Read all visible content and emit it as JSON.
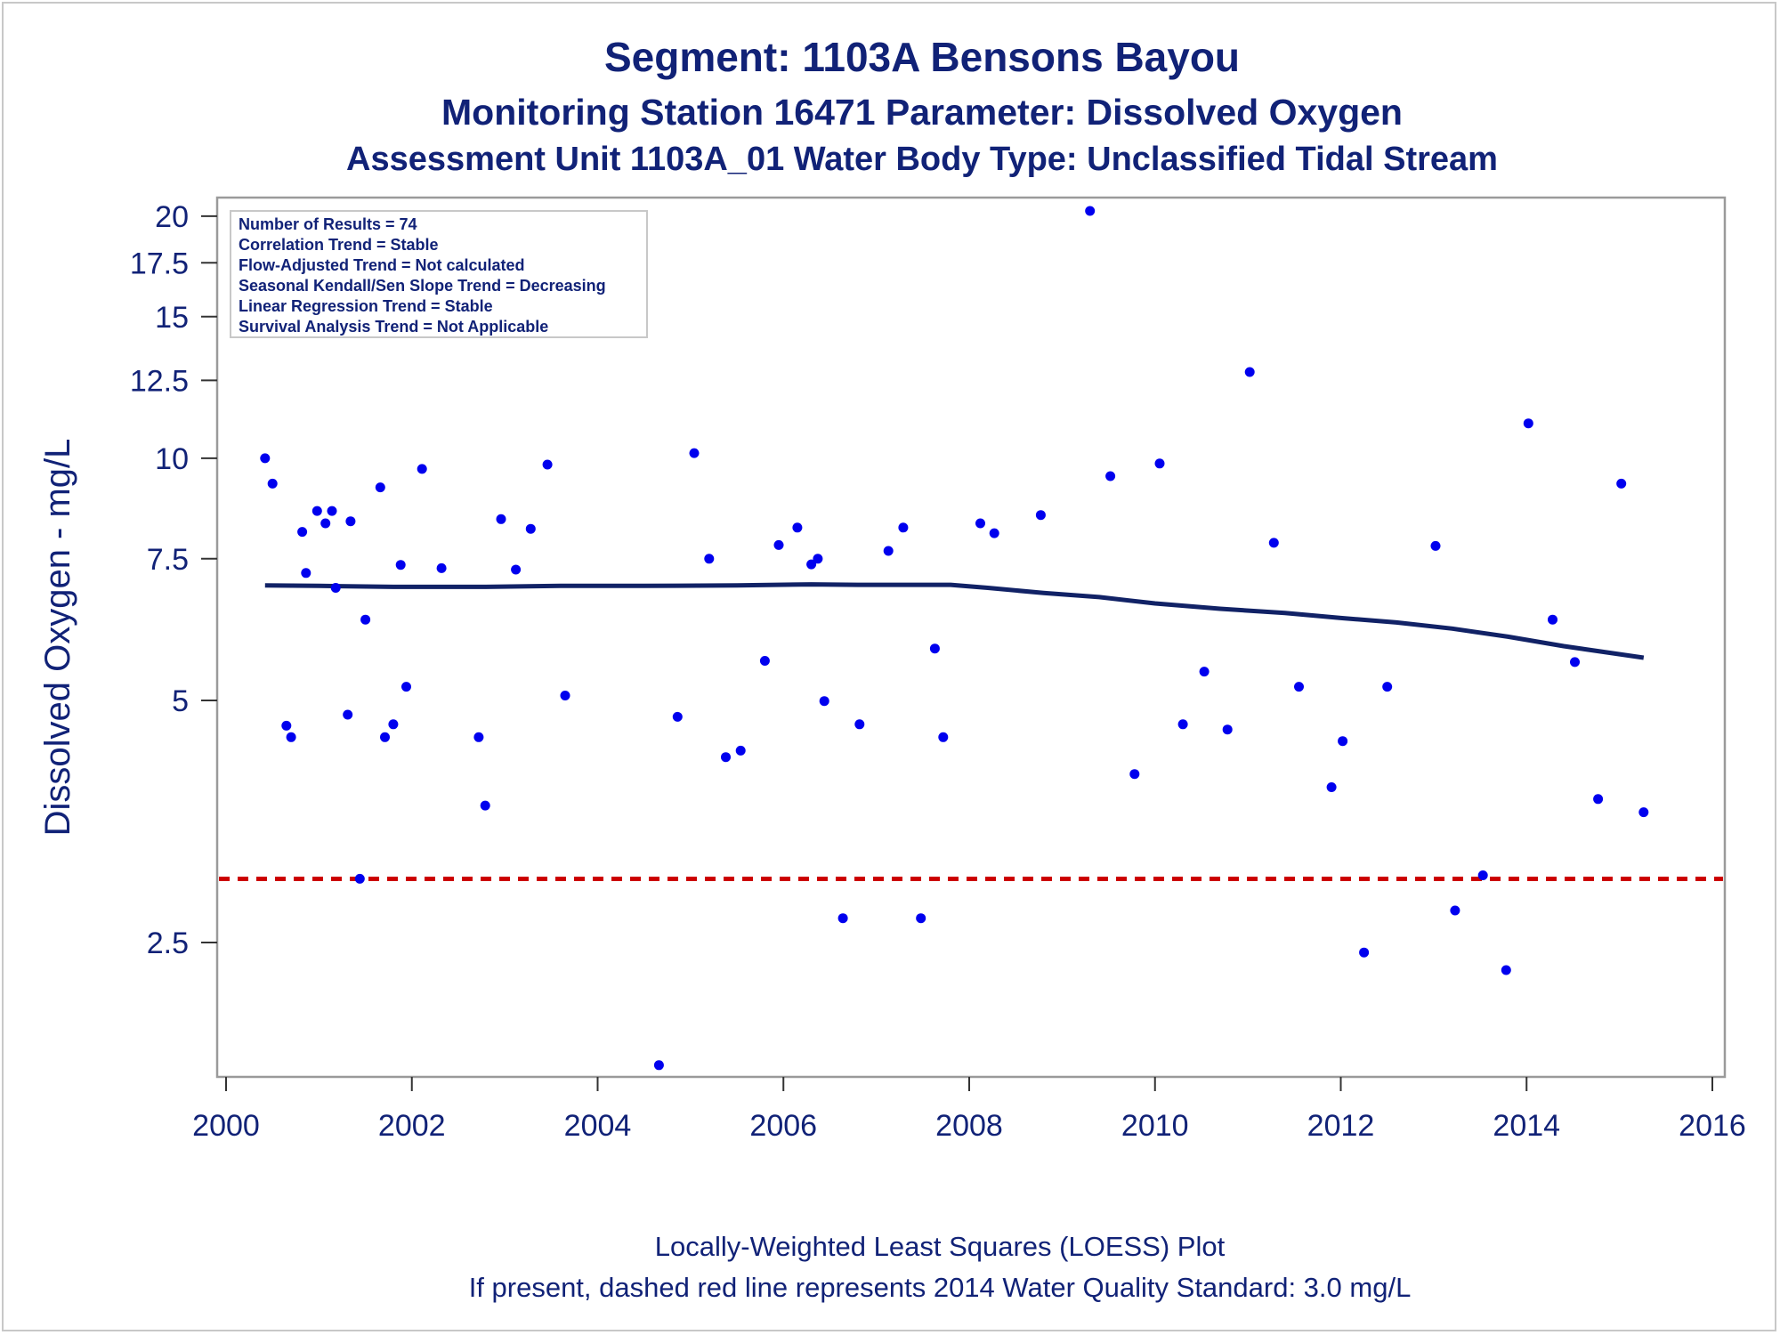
{
  "chart_data": {
    "type": "scatter",
    "title": "Segment: 1103A  Bensons Bayou",
    "subtitle": "Monitoring Station 16471 Parameter: Dissolved Oxygen",
    "subtitle2": "Assessment Unit 1103A_01   Water Body Type: Unclassified Tidal Stream",
    "ylabel": "Dissolved Oxygen - mg/L",
    "xlabel": "",
    "y_scale": "log",
    "xlim": [
      2000,
      2016.2
    ],
    "ylim": [
      1.75,
      20.3
    ],
    "x_ticks": [
      2000,
      2002,
      2004,
      2006,
      2008,
      2010,
      2012,
      2014,
      2016
    ],
    "x_tick_labels": [
      "2000",
      "2002",
      "2004",
      "2006",
      "2008",
      "2010",
      "2012",
      "2014",
      "2016"
    ],
    "y_ticks": [
      2.5,
      5,
      7.5,
      10,
      12.5,
      15,
      17.5,
      20
    ],
    "y_tick_labels": [
      "2.5",
      "5",
      "7.5",
      "10",
      "12.5",
      "15",
      "17.5",
      "20"
    ],
    "stats_box": [
      "Number of Results = 74",
      "Correlation Trend = Stable",
      "Flow-Adjusted Trend = Not calculated",
      "Seasonal Kendall/Sen Slope Trend = Decreasing",
      "Linear Regression Trend = Stable",
      "Survival Analysis Trend = Not Applicable"
    ],
    "footnotes": [
      "Locally-Weighted Least Squares (LOESS) Plot",
      "If present, dashed red line represents 2014 Water Quality Standard: 3.0 mg/L"
    ],
    "standard_line": {
      "y": 3.0,
      "color": "#cc0000",
      "style": "dashed"
    },
    "series": [
      {
        "type": "scatter",
        "color": "#0000ee",
        "points": [
          [
            2000.42,
            10.0
          ],
          [
            2000.5,
            9.3
          ],
          [
            2000.65,
            4.65
          ],
          [
            2000.7,
            4.5
          ],
          [
            2000.82,
            8.1
          ],
          [
            2000.86,
            7.2
          ],
          [
            2000.98,
            8.6
          ],
          [
            2001.07,
            8.3
          ],
          [
            2001.14,
            8.6
          ],
          [
            2001.18,
            6.9
          ],
          [
            2001.31,
            4.8
          ],
          [
            2001.34,
            8.35
          ],
          [
            2001.44,
            3.0
          ],
          [
            2001.5,
            6.3
          ],
          [
            2001.66,
            9.2
          ],
          [
            2001.71,
            4.5
          ],
          [
            2001.8,
            4.67
          ],
          [
            2001.88,
            7.37
          ],
          [
            2001.94,
            5.2
          ],
          [
            2002.11,
            9.7
          ],
          [
            2002.32,
            7.3
          ],
          [
            2002.72,
            4.5
          ],
          [
            2002.79,
            3.7
          ],
          [
            2002.96,
            8.4
          ],
          [
            2003.12,
            7.27
          ],
          [
            2003.28,
            8.17
          ],
          [
            2003.46,
            9.82
          ],
          [
            2003.65,
            5.07
          ],
          [
            2004.66,
            1.76
          ],
          [
            2004.86,
            4.77
          ],
          [
            2005.04,
            10.15
          ],
          [
            2005.2,
            7.5
          ],
          [
            2005.38,
            4.25
          ],
          [
            2005.54,
            4.33
          ],
          [
            2005.8,
            5.6
          ],
          [
            2005.95,
            7.8
          ],
          [
            2006.15,
            8.2
          ],
          [
            2006.3,
            7.38
          ],
          [
            2006.37,
            7.5
          ],
          [
            2006.44,
            4.99
          ],
          [
            2006.64,
            2.68
          ],
          [
            2006.82,
            4.67
          ],
          [
            2007.13,
            7.67
          ],
          [
            2007.29,
            8.2
          ],
          [
            2007.48,
            2.68
          ],
          [
            2007.63,
            5.8
          ],
          [
            2007.72,
            4.5
          ],
          [
            2008.12,
            8.3
          ],
          [
            2008.27,
            8.07
          ],
          [
            2008.77,
            8.5
          ],
          [
            2009.3,
            20.3
          ],
          [
            2009.52,
            9.5
          ],
          [
            2009.78,
            4.05
          ],
          [
            2010.05,
            9.85
          ],
          [
            2010.3,
            4.67
          ],
          [
            2010.53,
            5.43
          ],
          [
            2010.78,
            4.6
          ],
          [
            2011.02,
            12.8
          ],
          [
            2011.28,
            7.85
          ],
          [
            2011.55,
            5.2
          ],
          [
            2011.9,
            3.9
          ],
          [
            2012.02,
            4.45
          ],
          [
            2012.25,
            2.43
          ],
          [
            2012.5,
            5.2
          ],
          [
            2013.02,
            7.78
          ],
          [
            2013.23,
            2.74
          ],
          [
            2013.53,
            3.03
          ],
          [
            2013.78,
            2.31
          ],
          [
            2014.02,
            11.05
          ],
          [
            2014.28,
            6.3
          ],
          [
            2014.52,
            5.58
          ],
          [
            2014.77,
            3.77
          ],
          [
            2015.02,
            9.3
          ],
          [
            2015.26,
            3.63
          ]
        ]
      },
      {
        "type": "line",
        "color": "#112266",
        "points": [
          [
            2000.42,
            6.95
          ],
          [
            2001.0,
            6.94
          ],
          [
            2001.8,
            6.92
          ],
          [
            2002.8,
            6.92
          ],
          [
            2003.6,
            6.94
          ],
          [
            2004.5,
            6.94
          ],
          [
            2005.5,
            6.95
          ],
          [
            2006.3,
            6.97
          ],
          [
            2006.8,
            6.96
          ],
          [
            2007.5,
            6.96
          ],
          [
            2007.8,
            6.96
          ],
          [
            2008.2,
            6.9
          ],
          [
            2008.8,
            6.8
          ],
          [
            2009.4,
            6.72
          ],
          [
            2010.0,
            6.6
          ],
          [
            2010.7,
            6.5
          ],
          [
            2011.4,
            6.42
          ],
          [
            2012.0,
            6.33
          ],
          [
            2012.6,
            6.25
          ],
          [
            2013.2,
            6.14
          ],
          [
            2013.8,
            6.0
          ],
          [
            2014.4,
            5.84
          ],
          [
            2015.26,
            5.65
          ]
        ]
      }
    ]
  }
}
